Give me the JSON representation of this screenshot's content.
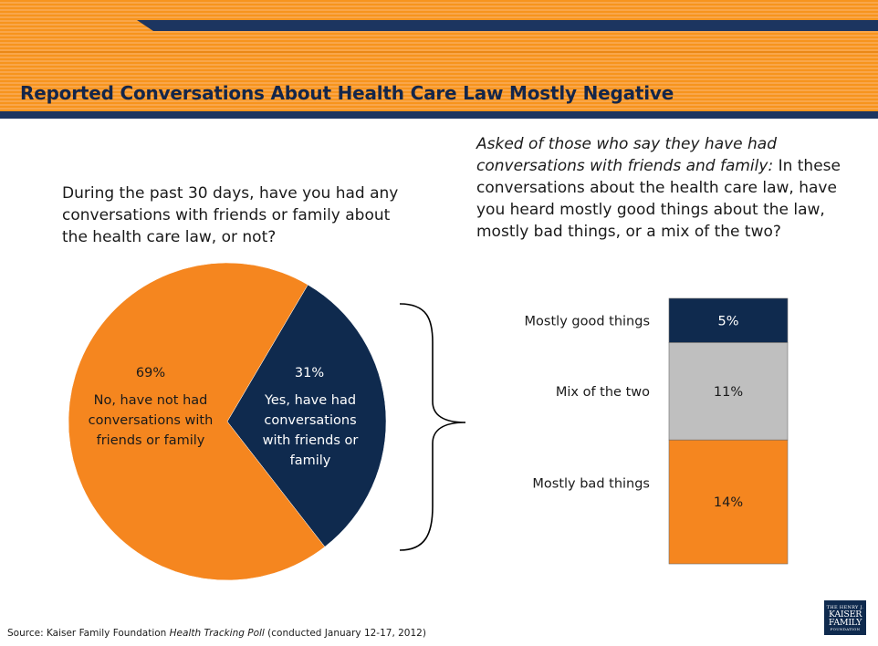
{
  "slide": {
    "title": "Reported Conversations About Health Care Law Mostly Negative",
    "left_question": "During the past 30 days, have you had any conversations with friends or family about the health care law, or not?",
    "right_question_lead": "Asked of those who say they have had conversations with friends and family:",
    "right_question_body": "In these conversations about the health care law, have you heard mostly good things about the law, mostly bad things, or a mix of the two?",
    "source_prefix": "Source: Kaiser Family Foundation ",
    "source_title": "Health Tracking Poll",
    "source_suffix": " (conducted January 12-17, 2012)",
    "logo_text": [
      "THE HENRY J.",
      "KAISER",
      "FAMILY",
      "FOUNDATION"
    ]
  },
  "colors": {
    "orange": "#f5861f",
    "navy": "#0f2a4e",
    "gray": "#bfbfbf",
    "header_orange": "#f7941d"
  },
  "chart_data": [
    {
      "type": "pie",
      "slices": [
        {
          "pct_label": "69%",
          "label": "No, have not had conversations with friends or family",
          "value": 69,
          "color": "#f5861f"
        },
        {
          "pct_label": "31%",
          "label": "Yes, have had conversations with friends or family",
          "value": 31,
          "color": "#0f2a4e"
        }
      ]
    },
    {
      "type": "bar",
      "stacked": true,
      "segments": [
        {
          "category": "Mostly good things",
          "value": 5,
          "value_label": "5%",
          "color": "#0f2a4e"
        },
        {
          "category": "Mix of the two",
          "value": 11,
          "value_label": "11%",
          "color": "#bfbfbf"
        },
        {
          "category": "Mostly bad things",
          "value": 14,
          "value_label": "14%",
          "color": "#f5861f"
        }
      ]
    }
  ]
}
